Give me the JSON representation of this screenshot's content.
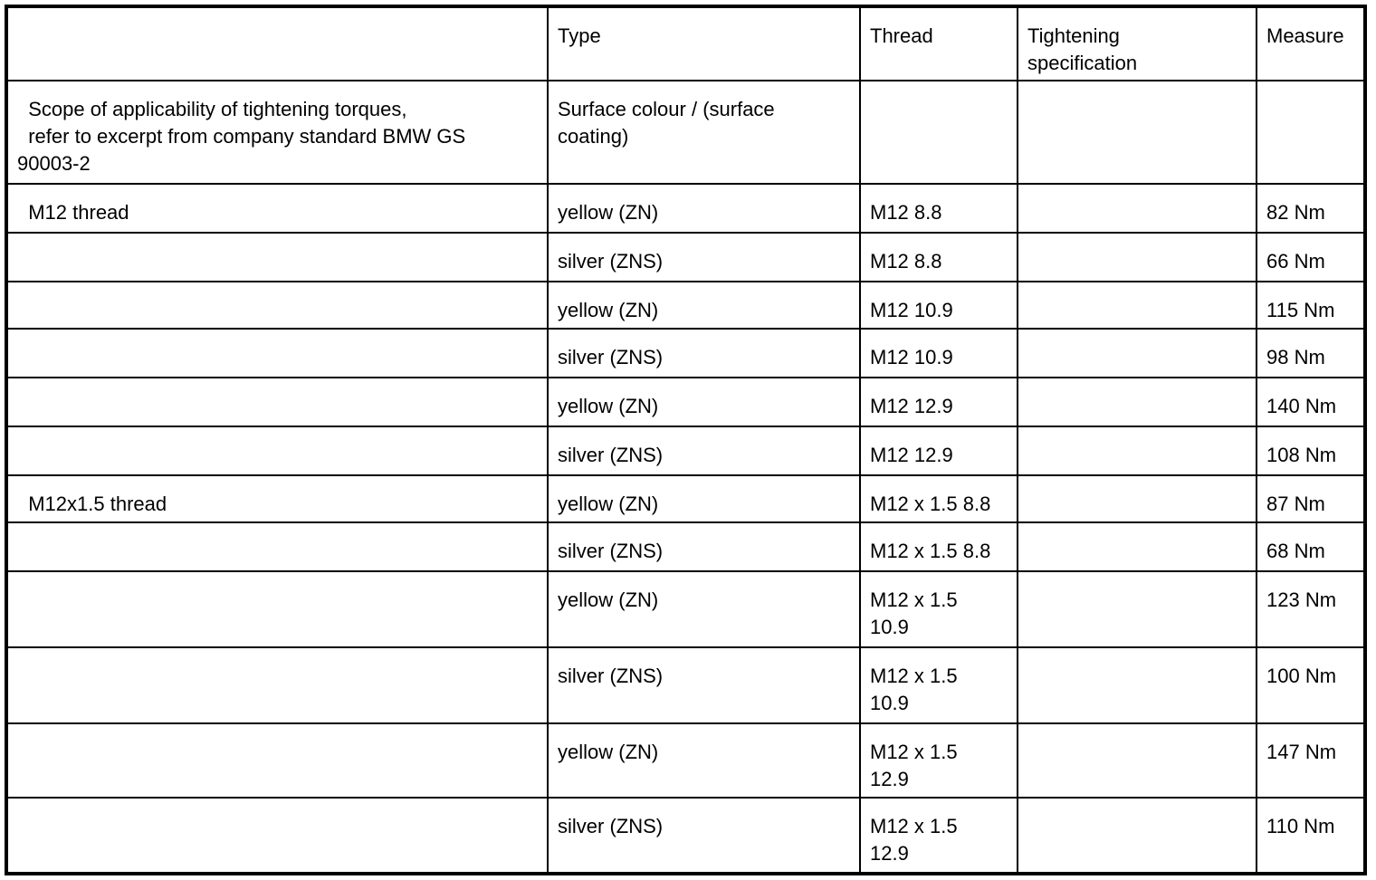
{
  "header": [
    "",
    "Type",
    "Thread",
    "Tightening\nspecification",
    "Measure"
  ],
  "rows": [
    [
      "  Scope of applicability of tightening torques,\n  refer to excerpt from company standard BMW GS\n90003-2",
      "Surface colour / (surface\ncoating)",
      "",
      "",
      ""
    ],
    [
      "  M12 thread",
      "yellow (ZN)",
      "M12 8.8",
      "",
      "82 Nm"
    ],
    [
      "",
      "silver (ZNS)",
      "M12 8.8",
      "",
      "66 Nm"
    ],
    [
      "",
      "yellow (ZN)",
      "M12 10.9",
      "",
      "115 Nm"
    ],
    [
      "",
      "silver (ZNS)",
      "M12 10.9",
      "",
      "98 Nm"
    ],
    [
      "",
      "yellow (ZN)",
      "M12 12.9",
      "",
      "140 Nm"
    ],
    [
      "",
      "silver (ZNS)",
      "M12 12.9",
      "",
      "108 Nm"
    ],
    [
      "  M12x1.5 thread",
      "yellow (ZN)",
      "M12 x 1.5 8.8",
      "",
      "87 Nm"
    ],
    [
      "",
      "silver (ZNS)",
      "M12 x 1.5 8.8",
      "",
      "68 Nm"
    ],
    [
      "",
      "yellow (ZN)",
      "M12 x 1.5\n10.9",
      "",
      "123 Nm"
    ],
    [
      "",
      "silver (ZNS)",
      "M12 x 1.5\n10.9",
      "",
      "100 Nm"
    ],
    [
      "",
      "yellow (ZN)",
      "M12 x 1.5\n12.9",
      "",
      "147 Nm"
    ],
    [
      "",
      "silver (ZNS)",
      "M12 x 1.5\n12.9",
      "",
      "110 Nm"
    ]
  ]
}
